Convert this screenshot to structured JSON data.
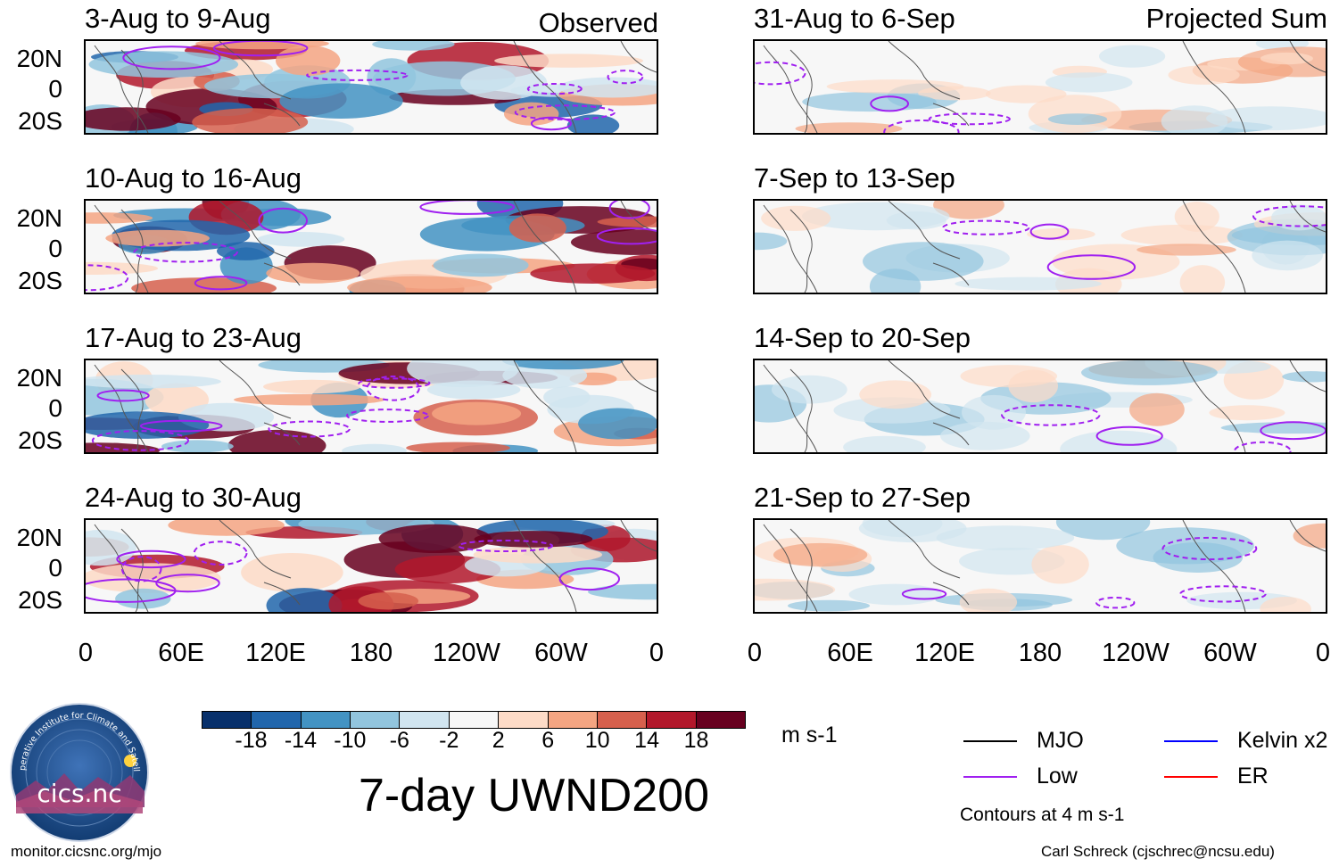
{
  "colors": {
    "low": "#a020f0",
    "mjo": "#000000",
    "kelvin": "#0000ff",
    "er": "#ff0000",
    "logo_bg": "#1f4f8a"
  },
  "panels": [
    {
      "title": "3-Aug to 9-Aug",
      "corner": "Observed",
      "column": "observed"
    },
    {
      "title": "10-Aug to 16-Aug",
      "corner": "",
      "column": "observed"
    },
    {
      "title": "17-Aug to 23-Aug",
      "corner": "",
      "column": "observed"
    },
    {
      "title": "24-Aug to 30-Aug",
      "corner": "",
      "column": "observed"
    },
    {
      "title": "31-Aug to 6-Sep",
      "corner": "Projected Sum",
      "column": "projected"
    },
    {
      "title": "7-Sep to 13-Sep",
      "corner": "",
      "column": "projected"
    },
    {
      "title": "14-Sep to 20-Sep",
      "corner": "",
      "column": "projected"
    },
    {
      "title": "21-Sep to 27-Sep",
      "corner": "",
      "column": "projected"
    }
  ],
  "y_ticks": [
    "20N",
    "0",
    "20S"
  ],
  "x_ticks": [
    "0",
    "60E",
    "120E",
    "180",
    "120W",
    "60W",
    "0"
  ],
  "colorbar": {
    "labels": [
      "-18",
      "-14",
      "-10",
      "-6",
      "-2",
      "2",
      "6",
      "10",
      "14",
      "18"
    ],
    "colors": [
      "#08306b",
      "#2166ac",
      "#4393c3",
      "#92c5de",
      "#d1e5f0",
      "#f7f7f7",
      "#fddbc7",
      "#f4a582",
      "#d6604d",
      "#b2182b",
      "#67001f"
    ],
    "units": "m s-1"
  },
  "title": "7-day UWND200",
  "legend": [
    {
      "label": "MJO",
      "color": "#000000"
    },
    {
      "label": "Low",
      "color": "#a020f0"
    },
    {
      "label": "Kelvin x2",
      "color": "#0000ff"
    },
    {
      "label": "ER",
      "color": "#ff0000"
    }
  ],
  "contour_note": "Contours at 4 m s-1",
  "logo": {
    "text": "cics.nc",
    "ring": "Cooperative Institute for Climate and Satellites"
  },
  "footer": {
    "left": "monitor.cicsnc.org/mjo",
    "right": "Carl Schreck (cjschrec@ncsu.edu)"
  }
}
